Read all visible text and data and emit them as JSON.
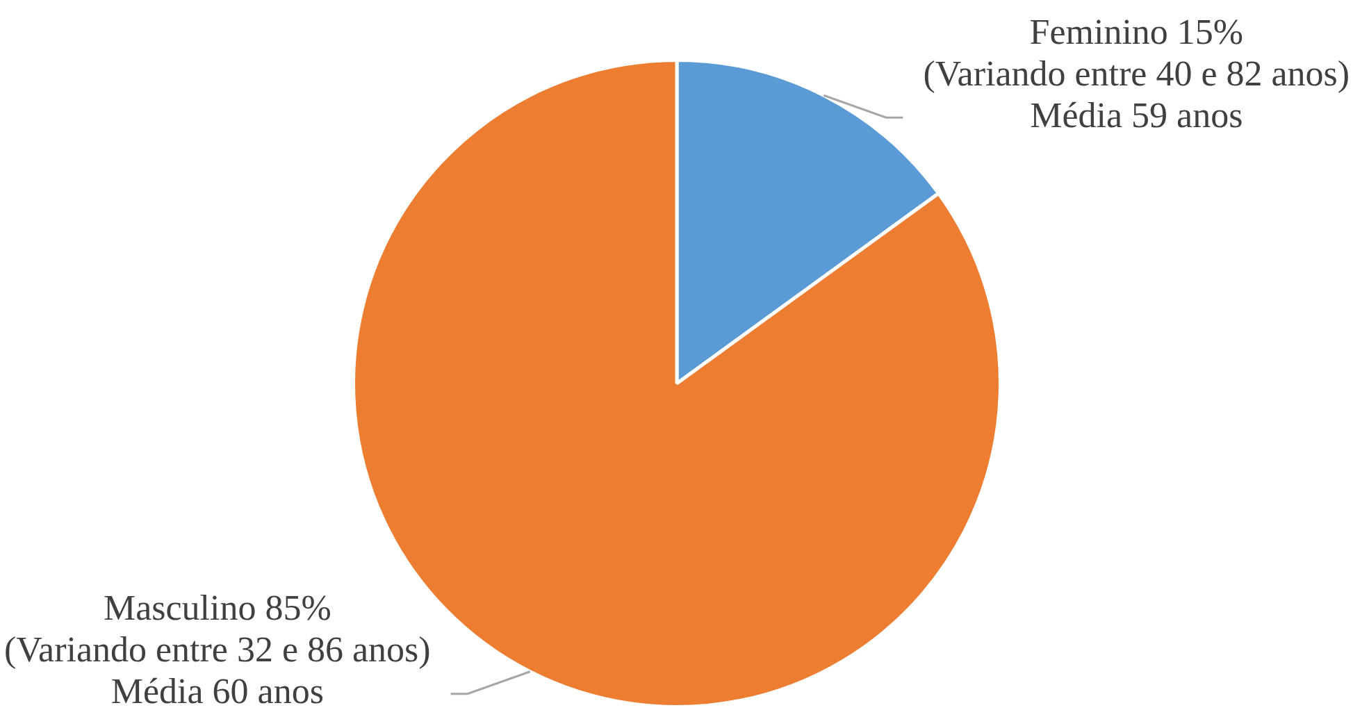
{
  "chart_data": {
    "type": "pie",
    "categories": [
      "Feminino",
      "Masculino"
    ],
    "values": [
      15,
      85
    ],
    "colors": [
      "#5b9bd5",
      "#ed7d31"
    ],
    "value_labels": [
      "15%\n(Variando entre 40 e 82 anos)\nMédia 59 anos",
      "85%\n(Variando entre 32 e 86 anos)\nMédia 60 anos"
    ]
  }
}
